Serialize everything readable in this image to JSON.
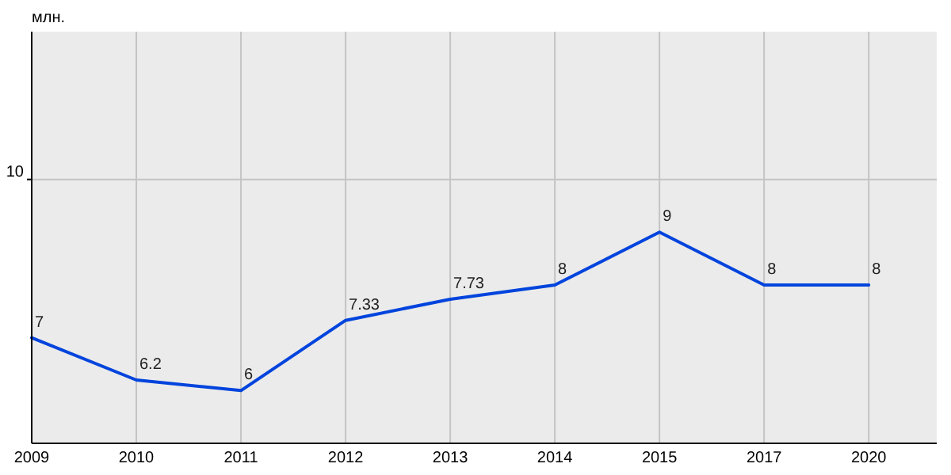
{
  "chart_data": {
    "type": "line",
    "ylabel": "млн.",
    "categories": [
      "2009",
      "2010",
      "2011",
      "2012",
      "2013",
      "2014",
      "2015",
      "2017",
      "2020"
    ],
    "series": [
      {
        "color": "#0044dd",
        "values": [
          7,
          6.2,
          6,
          7.33,
          7.73,
          8,
          9,
          8,
          8
        ]
      }
    ],
    "ylim": [
      5,
      12.8
    ],
    "ref_lines": [
      {
        "axis": "y",
        "value": 10,
        "label": "10",
        "color": "#c4c4c4"
      }
    ],
    "grid": "x",
    "data_labels": true
  }
}
